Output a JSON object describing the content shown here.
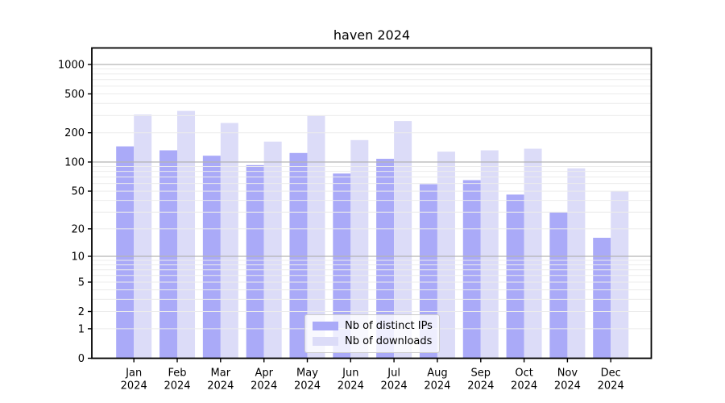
{
  "chart_data": {
    "type": "bar",
    "title": "haven 2024",
    "x": [
      "Jan",
      "Feb",
      "Mar",
      "Apr",
      "May",
      "Jun",
      "Jul",
      "Aug",
      "Sep",
      "Oct",
      "Nov",
      "Dec"
    ],
    "x_year": "2024",
    "series": [
      {
        "name": "Nb of distinct IPs",
        "color": "#aaaaf8",
        "values": [
          145,
          132,
          116,
          93,
          124,
          76,
          108,
          59,
          65,
          46,
          30,
          16
        ]
      },
      {
        "name": "Nb of downloads",
        "color": "#dcdcf8",
        "values": [
          308,
          335,
          252,
          162,
          300,
          168,
          264,
          128,
          132,
          137,
          86,
          50
        ]
      }
    ],
    "yscale": "log(value+1)",
    "yticks": [
      0,
      1,
      2,
      5,
      10,
      20,
      50,
      100,
      200,
      500,
      1000
    ],
    "ylim": [
      0,
      1475
    ],
    "grid": "horizontal, major and minor",
    "legend_position": "inside bottom-center"
  },
  "colors": {
    "major_grid": "#b3b3b3",
    "minor_grid": "#ececec",
    "spine": "#000000",
    "tick": "#000000",
    "legend_border": "#cccccc",
    "background": "#ffffff"
  }
}
